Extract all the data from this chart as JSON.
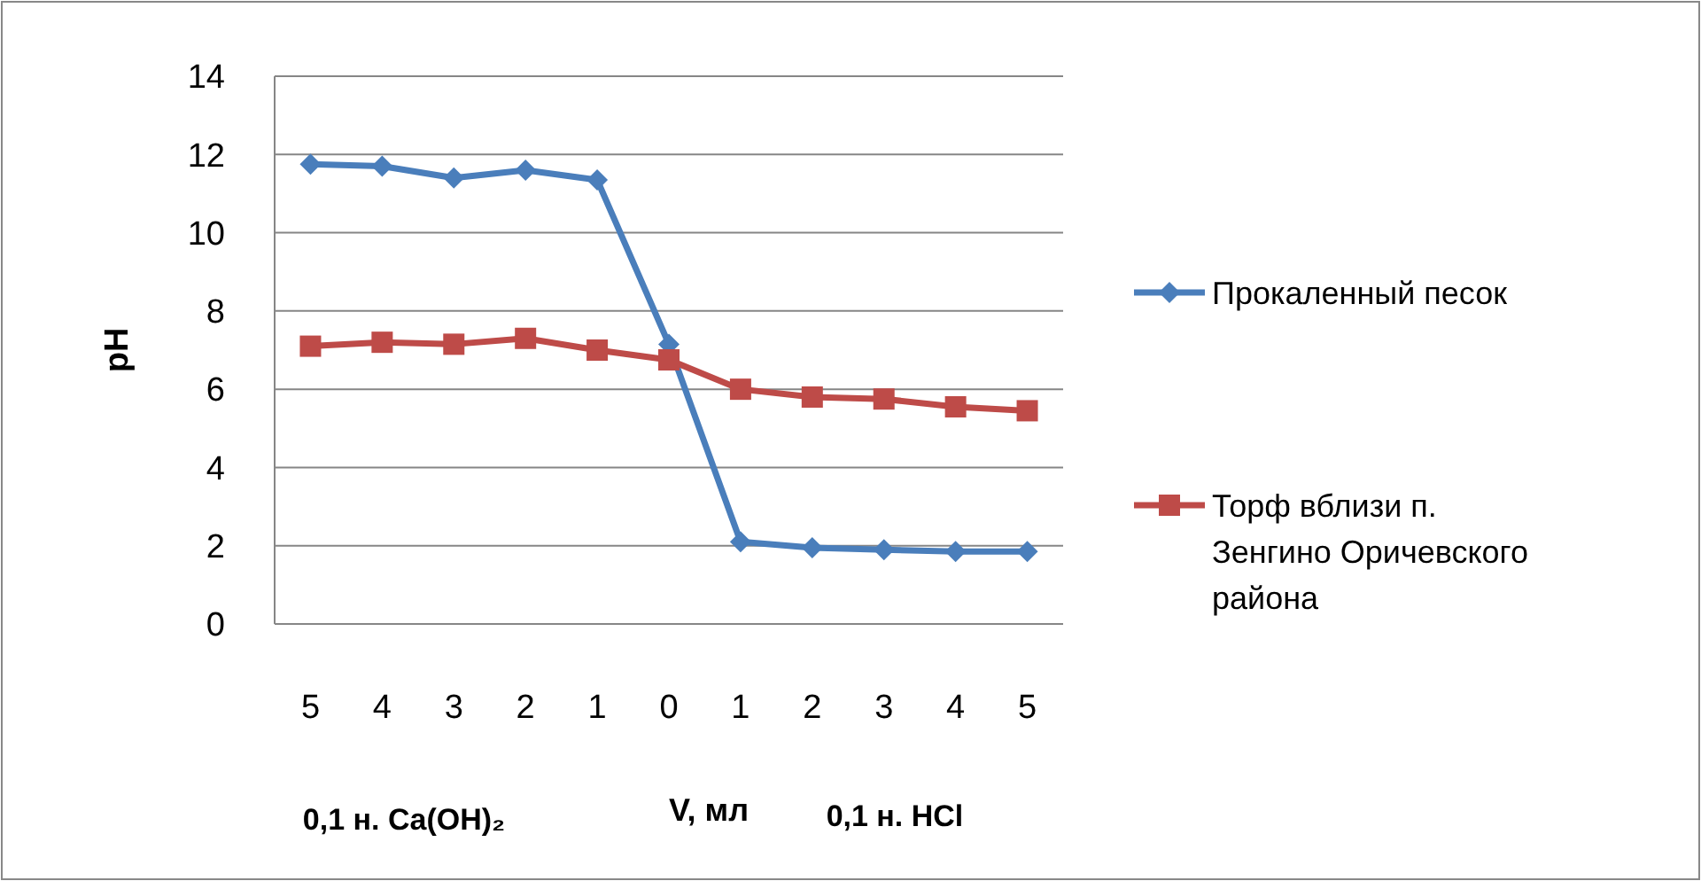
{
  "chart_data": {
    "type": "line",
    "ylabel": "pH",
    "xlabel": "V, мл",
    "categories": [
      "5",
      "4",
      "3",
      "2",
      "1",
      "0",
      "1",
      "2",
      "3",
      "4",
      "5"
    ],
    "ylim": [
      0,
      14
    ],
    "yticks": [
      0,
      2,
      4,
      6,
      8,
      10,
      12,
      14
    ],
    "grid": "y",
    "legend": "right",
    "series": [
      {
        "name": "Прокаленный песок",
        "color": "#4a7ebb",
        "marker": "diamond",
        "values": [
          11.75,
          11.7,
          11.4,
          11.6,
          11.35,
          7.15,
          2.1,
          1.95,
          1.9,
          1.85,
          1.85
        ]
      },
      {
        "name": "Торф вблизи п. Зенгино Оричевского района",
        "color": "#be4b48",
        "marker": "square",
        "values": [
          7.1,
          7.2,
          7.15,
          7.3,
          7.0,
          6.75,
          6.0,
          5.8,
          5.75,
          5.55,
          5.45
        ]
      }
    ],
    "annotations": [
      "0,1 н. Ca(OH)₂",
      "0,1 н. HCl"
    ]
  }
}
